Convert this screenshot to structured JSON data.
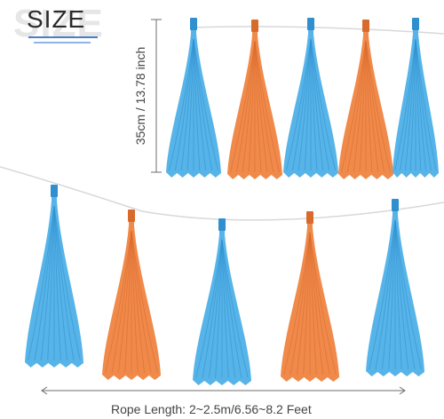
{
  "header": {
    "title": "SIZE"
  },
  "dimensions": {
    "height_label": "35cm / 13.78 inch",
    "rope_label": "Rope Length: 2~2.5m/6.56~8.2 Feet"
  },
  "colors": {
    "blue": "#57b4e8",
    "blue_dark": "#2f8fcf",
    "orange": "#f08a4b",
    "orange_dark": "#d86a2c",
    "rope": "#d8d8d8",
    "measure_line": "#6d6d6d"
  },
  "garland_top": {
    "tassels": [
      {
        "color": "blue"
      },
      {
        "color": "orange"
      },
      {
        "color": "blue"
      },
      {
        "color": "orange"
      },
      {
        "color": "blue"
      }
    ]
  },
  "garland_bottom": {
    "tassels": [
      {
        "color": "blue"
      },
      {
        "color": "orange"
      },
      {
        "color": "blue"
      },
      {
        "color": "orange"
      },
      {
        "color": "blue"
      }
    ]
  }
}
